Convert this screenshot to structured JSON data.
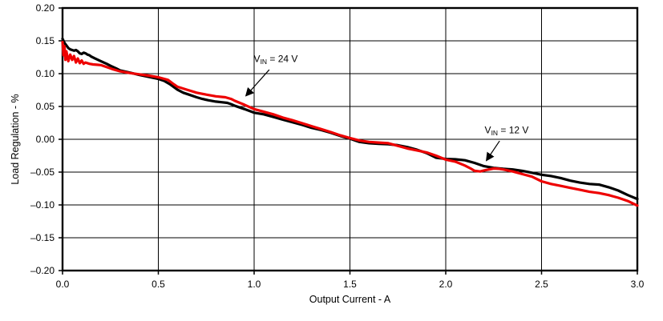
{
  "figure": {
    "background": "#ffffff",
    "border_color": "#000000",
    "grid_color": "#000000"
  },
  "chart_data": {
    "type": "line",
    "title": "",
    "xlabel": "Output Current - A",
    "ylabel": "Load Regulation  -  %",
    "xlim": [
      0.0,
      3.0
    ],
    "ylim": [
      -0.2,
      0.2
    ],
    "grid": true,
    "legend_position": "none",
    "xticks": [
      0.0,
      0.5,
      1.0,
      1.5,
      2.0,
      2.5,
      3.0
    ],
    "x_tick_labels": [
      "0.0",
      "0.5",
      "1.0",
      "1.5",
      "2.0",
      "2.5",
      "3.0"
    ],
    "yticks": [
      0.2,
      0.15,
      0.1,
      0.05,
      0.0,
      -0.05,
      -0.1,
      -0.15,
      -0.2
    ],
    "y_tick_labels": [
      "0.20",
      "0.15",
      "0.10",
      "0.05",
      "0.00",
      "–0.05",
      "–0.10",
      "–0.15",
      "–0.20"
    ],
    "series": [
      {
        "name": "VIN = 12 V",
        "color": "#000000",
        "line_width": 3.2,
        "points": [
          [
            0.0,
            0.153
          ],
          [
            0.01,
            0.147
          ],
          [
            0.02,
            0.143
          ],
          [
            0.03,
            0.139
          ],
          [
            0.04,
            0.137
          ],
          [
            0.05,
            0.136
          ],
          [
            0.06,
            0.135
          ],
          [
            0.07,
            0.136
          ],
          [
            0.08,
            0.134
          ],
          [
            0.09,
            0.131
          ],
          [
            0.1,
            0.13
          ],
          [
            0.11,
            0.132
          ],
          [
            0.12,
            0.131
          ],
          [
            0.13,
            0.129
          ],
          [
            0.14,
            0.128
          ],
          [
            0.15,
            0.126
          ],
          [
            0.17,
            0.123
          ],
          [
            0.2,
            0.119
          ],
          [
            0.23,
            0.115
          ],
          [
            0.25,
            0.112
          ],
          [
            0.28,
            0.108
          ],
          [
            0.3,
            0.105
          ],
          [
            0.33,
            0.103
          ],
          [
            0.36,
            0.101
          ],
          [
            0.4,
            0.098
          ],
          [
            0.45,
            0.095
          ],
          [
            0.5,
            0.092
          ],
          [
            0.53,
            0.089
          ],
          [
            0.56,
            0.084
          ],
          [
            0.6,
            0.0755
          ],
          [
            0.63,
            0.071
          ],
          [
            0.66,
            0.068
          ],
          [
            0.7,
            0.064
          ],
          [
            0.73,
            0.0615
          ],
          [
            0.76,
            0.0595
          ],
          [
            0.8,
            0.0575
          ],
          [
            0.83,
            0.0565
          ],
          [
            0.86,
            0.0555
          ],
          [
            0.88,
            0.0535
          ],
          [
            0.9,
            0.051
          ],
          [
            0.95,
            0.046
          ],
          [
            1.0,
            0.0405
          ],
          [
            1.05,
            0.038
          ],
          [
            1.1,
            0.034
          ],
          [
            1.15,
            0.03
          ],
          [
            1.2,
            0.026
          ],
          [
            1.25,
            0.022
          ],
          [
            1.3,
            0.0175
          ],
          [
            1.35,
            0.014
          ],
          [
            1.4,
            0.01
          ],
          [
            1.45,
            0.005
          ],
          [
            1.5,
            0.001
          ],
          [
            1.55,
            -0.004
          ],
          [
            1.6,
            -0.006
          ],
          [
            1.65,
            -0.007
          ],
          [
            1.7,
            -0.0075
          ],
          [
            1.75,
            -0.009
          ],
          [
            1.8,
            -0.012
          ],
          [
            1.85,
            -0.016
          ],
          [
            1.9,
            -0.021
          ],
          [
            1.95,
            -0.028
          ],
          [
            2.0,
            -0.03
          ],
          [
            2.05,
            -0.0305
          ],
          [
            2.1,
            -0.032
          ],
          [
            2.15,
            -0.036
          ],
          [
            2.2,
            -0.041
          ],
          [
            2.25,
            -0.0435
          ],
          [
            2.3,
            -0.045
          ],
          [
            2.35,
            -0.046
          ],
          [
            2.4,
            -0.048
          ],
          [
            2.45,
            -0.051
          ],
          [
            2.5,
            -0.054
          ],
          [
            2.55,
            -0.056
          ],
          [
            2.6,
            -0.059
          ],
          [
            2.65,
            -0.063
          ],
          [
            2.7,
            -0.066
          ],
          [
            2.75,
            -0.068
          ],
          [
            2.8,
            -0.069
          ],
          [
            2.85,
            -0.073
          ],
          [
            2.9,
            -0.078
          ],
          [
            2.95,
            -0.085
          ],
          [
            3.0,
            -0.091
          ]
        ]
      },
      {
        "name": "VIN = 24 V",
        "color": "#ee0000",
        "line_width": 3.2,
        "points": [
          [
            0.0,
            0.148
          ],
          [
            0.005,
            0.128
          ],
          [
            0.01,
            0.142
          ],
          [
            0.015,
            0.121
          ],
          [
            0.02,
            0.134
          ],
          [
            0.03,
            0.119
          ],
          [
            0.04,
            0.129
          ],
          [
            0.05,
            0.121
          ],
          [
            0.06,
            0.127
          ],
          [
            0.07,
            0.117
          ],
          [
            0.08,
            0.123
          ],
          [
            0.09,
            0.116
          ],
          [
            0.1,
            0.12
          ],
          [
            0.11,
            0.115
          ],
          [
            0.12,
            0.117
          ],
          [
            0.14,
            0.115
          ],
          [
            0.16,
            0.114
          ],
          [
            0.18,
            0.1135
          ],
          [
            0.2,
            0.113
          ],
          [
            0.23,
            0.11
          ],
          [
            0.26,
            0.107
          ],
          [
            0.3,
            0.1035
          ],
          [
            0.35,
            0.101
          ],
          [
            0.4,
            0.099
          ],
          [
            0.45,
            0.097
          ],
          [
            0.5,
            0.0945
          ],
          [
            0.55,
            0.0905
          ],
          [
            0.58,
            0.084
          ],
          [
            0.6,
            0.08
          ],
          [
            0.65,
            0.0755
          ],
          [
            0.7,
            0.071
          ],
          [
            0.75,
            0.068
          ],
          [
            0.8,
            0.0655
          ],
          [
            0.85,
            0.064
          ],
          [
            0.88,
            0.0615
          ],
          [
            0.9,
            0.0585
          ],
          [
            0.95,
            0.0525
          ],
          [
            1.0,
            0.046
          ],
          [
            1.05,
            0.042
          ],
          [
            1.1,
            0.038
          ],
          [
            1.15,
            0.033
          ],
          [
            1.2,
            0.029
          ],
          [
            1.25,
            0.0245
          ],
          [
            1.3,
            0.02
          ],
          [
            1.35,
            0.0155
          ],
          [
            1.4,
            0.011
          ],
          [
            1.45,
            0.006
          ],
          [
            1.5,
            0.002
          ],
          [
            1.55,
            -0.002
          ],
          [
            1.6,
            -0.004
          ],
          [
            1.65,
            -0.005
          ],
          [
            1.7,
            -0.006
          ],
          [
            1.75,
            -0.01
          ],
          [
            1.8,
            -0.014
          ],
          [
            1.85,
            -0.017
          ],
          [
            1.9,
            -0.02
          ],
          [
            1.95,
            -0.025
          ],
          [
            2.0,
            -0.031
          ],
          [
            2.05,
            -0.034
          ],
          [
            2.1,
            -0.04
          ],
          [
            2.13,
            -0.0445
          ],
          [
            2.15,
            -0.048
          ],
          [
            2.18,
            -0.049
          ],
          [
            2.2,
            -0.0475
          ],
          [
            2.25,
            -0.0445
          ],
          [
            2.28,
            -0.045
          ],
          [
            2.3,
            -0.046
          ],
          [
            2.35,
            -0.049
          ],
          [
            2.4,
            -0.053
          ],
          [
            2.45,
            -0.057
          ],
          [
            2.5,
            -0.064
          ],
          [
            2.55,
            -0.068
          ],
          [
            2.6,
            -0.071
          ],
          [
            2.65,
            -0.074
          ],
          [
            2.7,
            -0.077
          ],
          [
            2.75,
            -0.08
          ],
          [
            2.8,
            -0.082
          ],
          [
            2.85,
            -0.085
          ],
          [
            2.9,
            -0.089
          ],
          [
            2.95,
            -0.094
          ],
          [
            3.0,
            -0.101
          ]
        ]
      }
    ],
    "annotations": [
      {
        "id": "vin-24v-label",
        "pre": "V",
        "sub": "IN",
        "post": " = 24 V",
        "target_series": "VIN = 24 V",
        "text_x": 1.113,
        "text_y": 0.1225,
        "arrow_from_x": 1.079,
        "arrow_from_y": 0.106,
        "arrow_to_x": 0.958,
        "arrow_to_y": 0.0665
      },
      {
        "id": "vin-12v-label",
        "pre": "V",
        "sub": "IN",
        "post": " = 12 V",
        "target_series": "VIN = 12 V",
        "text_x": 2.318,
        "text_y": 0.014,
        "arrow_from_x": 2.281,
        "arrow_from_y": -0.0025,
        "arrow_to_x": 2.213,
        "arrow_to_y": -0.032
      }
    ]
  }
}
